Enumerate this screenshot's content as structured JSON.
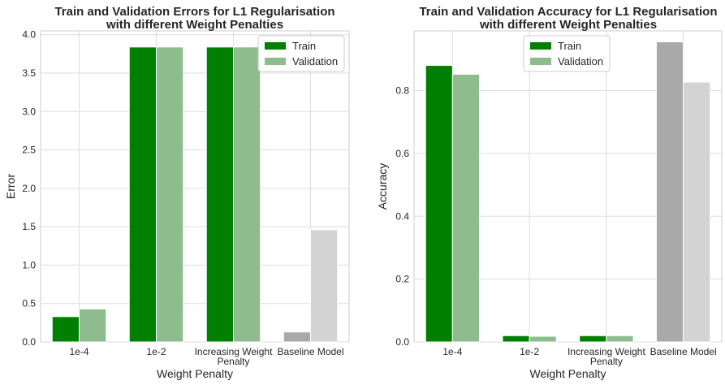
{
  "chart_data": [
    {
      "type": "bar",
      "title_line1": "Train and Validation Errors for L1 Regularisation",
      "title_line2": "with different Weight Penalties",
      "xlabel": "Weight Penalty",
      "ylabel": "Error",
      "categories": [
        "1e-4",
        "1e-2",
        "Increasing Weight\nPenalty",
        "Baseline Model"
      ],
      "ylim": [
        0,
        4.05
      ],
      "yticks": [
        "0.0",
        "0.5",
        "1.0",
        "1.5",
        "2.0",
        "2.5",
        "3.0",
        "3.5",
        "4.0"
      ],
      "series": [
        {
          "name": "Train",
          "values": [
            0.33,
            3.84,
            3.84,
            0.13
          ],
          "colors": [
            "#008000",
            "#008000",
            "#008000",
            "#a9a9a9"
          ]
        },
        {
          "name": "Validation",
          "values": [
            0.43,
            3.84,
            3.84,
            1.46
          ],
          "colors": [
            "#8fbc8f",
            "#8fbc8f",
            "#8fbc8f",
            "#d3d3d3"
          ]
        }
      ],
      "legend": {
        "position": "top-right",
        "entries": [
          "Train",
          "Validation"
        ],
        "colors": [
          "#008000",
          "#8fbc8f"
        ]
      },
      "grid": true
    },
    {
      "type": "bar",
      "title_line1": "Train and Validation Accuracy for L1 Regularisation",
      "title_line2": "with different Weight Penalties",
      "xlabel": "Weight Penalty",
      "ylabel": "Accuracy",
      "categories": [
        "1e-4",
        "1e-2",
        "Increasing Weight\nPenalty",
        "Baseline Model"
      ],
      "ylim": [
        0,
        0.99
      ],
      "yticks": [
        "0.0",
        "0.2",
        "0.4",
        "0.6",
        "0.8"
      ],
      "series": [
        {
          "name": "Train",
          "values": [
            0.88,
            0.02,
            0.02,
            0.955
          ],
          "colors": [
            "#008000",
            "#008000",
            "#008000",
            "#a9a9a9"
          ]
        },
        {
          "name": "Validation",
          "values": [
            0.852,
            0.018,
            0.02,
            0.827
          ],
          "colors": [
            "#8fbc8f",
            "#8fbc8f",
            "#8fbc8f",
            "#d3d3d3"
          ]
        }
      ],
      "legend": {
        "position": "top-center",
        "entries": [
          "Train",
          "Validation"
        ],
        "colors": [
          "#008000",
          "#8fbc8f"
        ]
      },
      "grid": true
    }
  ]
}
